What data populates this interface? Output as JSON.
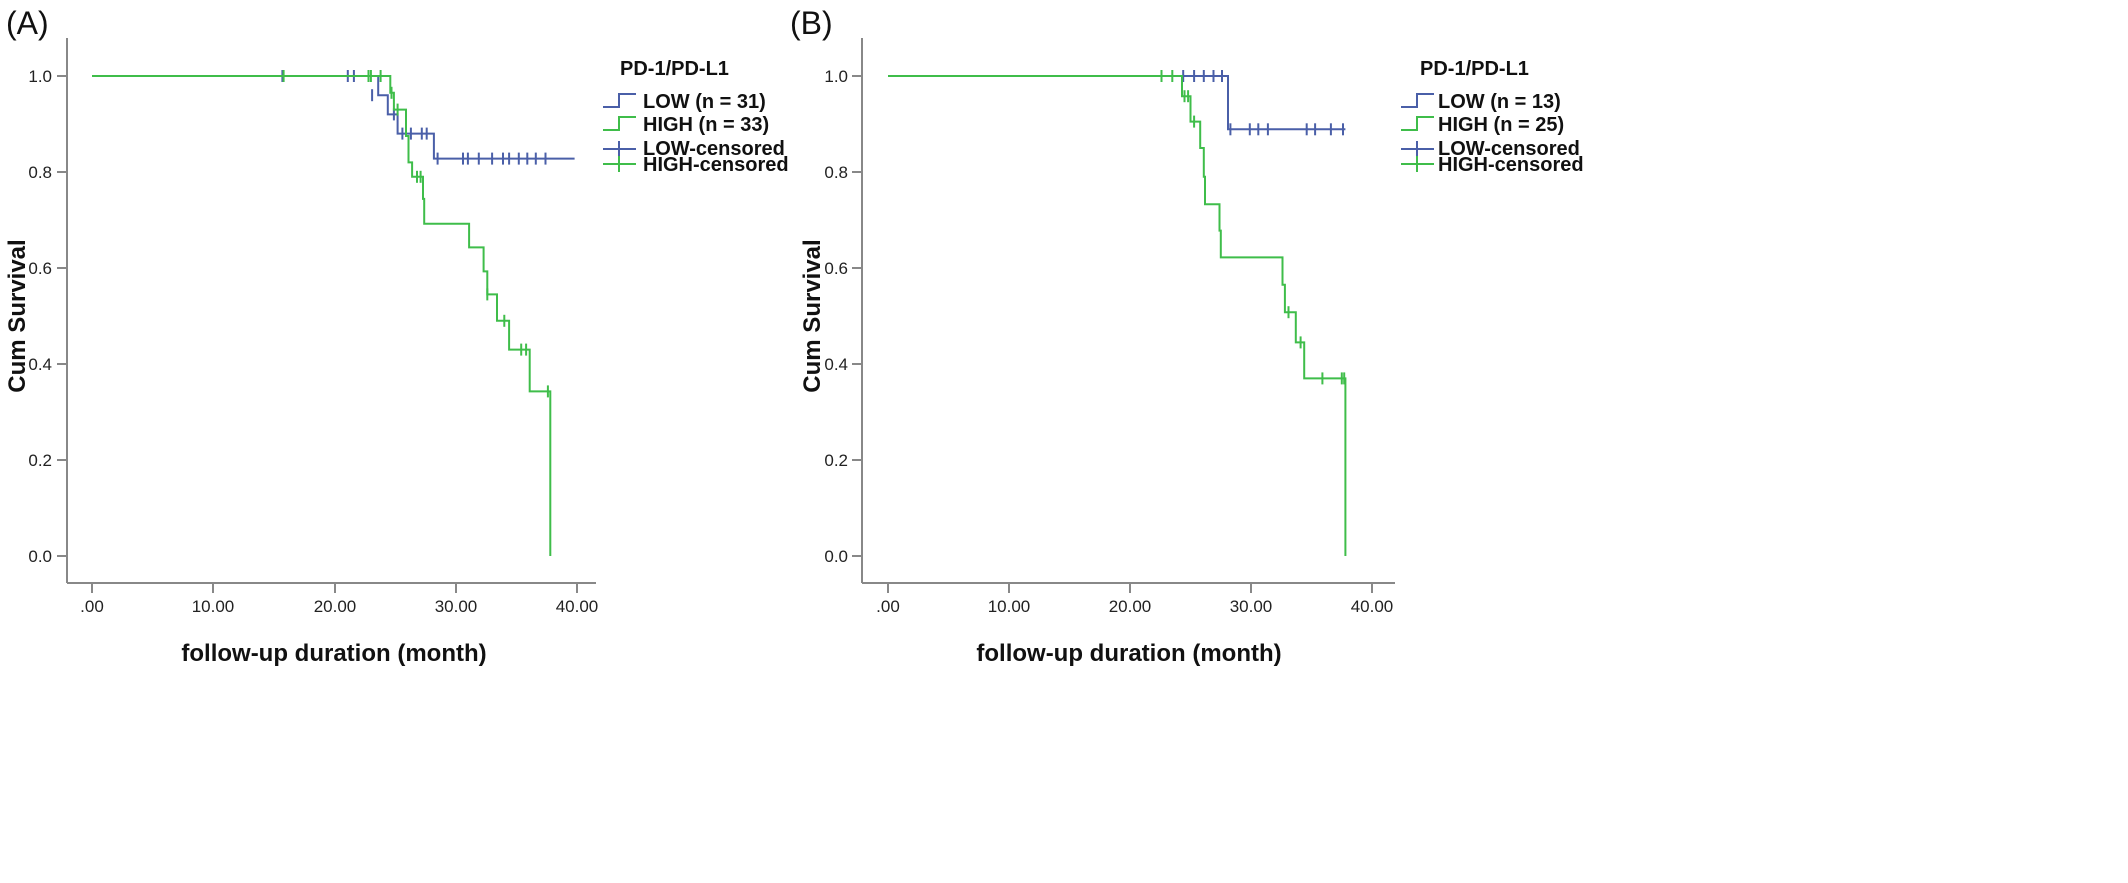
{
  "chart_data": [
    {
      "panel_label": "(A)",
      "type": "line",
      "subtype": "kaplan-meier",
      "xlabel": "follow-up duration (month)",
      "ylabel": "Cum Survival",
      "xlim": [
        -2,
        42
      ],
      "ylim": [
        -0.04,
        1.06
      ],
      "xticks": [
        0,
        10,
        20,
        30,
        40
      ],
      "xtick_labels": [
        ".00",
        "10.00",
        "20.00",
        "30.00",
        "40.00"
      ],
      "yticks": [
        0,
        0.2,
        0.4,
        0.6,
        0.8,
        1.0
      ],
      "ytick_labels": [
        "0.0",
        "0.2",
        "0.4",
        "0.6",
        "0.8",
        "1.0"
      ],
      "grid": false,
      "legend": {
        "title": "PD-1/PD-L1",
        "position": "top-right",
        "entries": [
          "LOW (n = 31)",
          "HIGH (n = 33)",
          "LOW-censored",
          "HIGH-censored"
        ]
      },
      "series": [
        {
          "name": "LOW (n = 31)",
          "color": "#4a5fa8",
          "steps": [
            [
              0,
              1.0
            ],
            [
              23.6,
              0.96
            ],
            [
              24.4,
              0.92
            ],
            [
              25.2,
              0.88
            ],
            [
              28.2,
              0.828
            ],
            [
              39.8,
              0.828
            ]
          ],
          "censored": [
            [
              15.7,
              1.0
            ],
            [
              21.1,
              1.0
            ],
            [
              21.6,
              1.0
            ],
            [
              23.1,
              0.96
            ],
            [
              24.9,
              0.92
            ],
            [
              25.6,
              0.88
            ],
            [
              26.3,
              0.88
            ],
            [
              27.2,
              0.88
            ],
            [
              27.6,
              0.88
            ],
            [
              28.5,
              0.828
            ],
            [
              30.6,
              0.828
            ],
            [
              31.0,
              0.828
            ],
            [
              31.9,
              0.828
            ],
            [
              33.0,
              0.828
            ],
            [
              33.9,
              0.828
            ],
            [
              34.4,
              0.828
            ],
            [
              35.2,
              0.828
            ],
            [
              35.9,
              0.828
            ],
            [
              36.6,
              0.828
            ],
            [
              37.4,
              0.828
            ]
          ]
        },
        {
          "name": "HIGH (n = 33)",
          "color": "#3fbd4a",
          "steps": [
            [
              0,
              1.0
            ],
            [
              24.6,
              0.965
            ],
            [
              24.9,
              0.93
            ],
            [
              25.9,
              0.875
            ],
            [
              26.1,
              0.82
            ],
            [
              26.4,
              0.79
            ],
            [
              27.3,
              0.744
            ],
            [
              27.4,
              0.692
            ],
            [
              31.1,
              0.643
            ],
            [
              32.3,
              0.593
            ],
            [
              32.6,
              0.545
            ],
            [
              33.4,
              0.49
            ],
            [
              34.4,
              0.43
            ],
            [
              36.1,
              0.343
            ],
            [
              37.8,
              0.0
            ]
          ],
          "censored": [
            [
              15.8,
              1.0
            ],
            [
              22.8,
              1.0
            ],
            [
              23.0,
              1.0
            ],
            [
              23.8,
              1.0
            ],
            [
              24.7,
              0.965
            ],
            [
              25.2,
              0.93
            ],
            [
              26.8,
              0.79
            ],
            [
              27.1,
              0.79
            ],
            [
              32.6,
              0.545
            ],
            [
              34.0,
              0.49
            ],
            [
              35.4,
              0.43
            ],
            [
              35.8,
              0.43
            ],
            [
              37.6,
              0.343
            ]
          ]
        }
      ]
    },
    {
      "panel_label": "(B)",
      "type": "line",
      "subtype": "kaplan-meier",
      "xlabel": "follow-up duration (month)",
      "ylabel": "Cum Survival",
      "xlim": [
        -2,
        42
      ],
      "ylim": [
        -0.04,
        1.06
      ],
      "xticks": [
        0,
        10,
        20,
        30,
        40
      ],
      "xtick_labels": [
        ".00",
        "10.00",
        "20.00",
        "30.00",
        "40.00"
      ],
      "yticks": [
        0,
        0.2,
        0.4,
        0.6,
        0.8,
        1.0
      ],
      "ytick_labels": [
        "0.0",
        "0.2",
        "0.4",
        "0.6",
        "0.8",
        "1.0"
      ],
      "grid": false,
      "legend": {
        "title": "PD-1/PD-L1",
        "position": "top-right",
        "entries": [
          "LOW (n = 13)",
          "HIGH (n = 25)",
          "LOW-censored",
          "HIGH-censored"
        ]
      },
      "series": [
        {
          "name": "LOW (n = 13)",
          "color": "#4a5fa8",
          "steps": [
            [
              0,
              1.0
            ],
            [
              28.1,
              0.889
            ],
            [
              37.8,
              0.889
            ]
          ],
          "censored": [
            [
              24.4,
              1.0
            ],
            [
              25.3,
              1.0
            ],
            [
              26.1,
              1.0
            ],
            [
              26.9,
              1.0
            ],
            [
              27.6,
              1.0
            ],
            [
              28.3,
              0.889
            ],
            [
              29.9,
              0.889
            ],
            [
              30.6,
              0.889
            ],
            [
              31.4,
              0.889
            ],
            [
              34.6,
              0.889
            ],
            [
              35.3,
              0.889
            ],
            [
              36.6,
              0.889
            ],
            [
              37.6,
              0.889
            ]
          ]
        },
        {
          "name": "HIGH (n = 25)",
          "color": "#3fbd4a",
          "steps": [
            [
              0,
              1.0
            ],
            [
              24.3,
              0.958
            ],
            [
              25.0,
              0.905
            ],
            [
              25.8,
              0.85
            ],
            [
              26.1,
              0.79
            ],
            [
              26.2,
              0.733
            ],
            [
              27.4,
              0.678
            ],
            [
              27.5,
              0.622
            ],
            [
              32.6,
              0.565
            ],
            [
              32.8,
              0.508
            ],
            [
              33.7,
              0.445
            ],
            [
              34.4,
              0.37
            ],
            [
              37.8,
              0.0
            ]
          ],
          "censored": [
            [
              22.6,
              1.0
            ],
            [
              23.5,
              1.0
            ],
            [
              24.5,
              0.958
            ],
            [
              24.8,
              0.958
            ],
            [
              25.3,
              0.905
            ],
            [
              33.1,
              0.508
            ],
            [
              34.1,
              0.445
            ],
            [
              35.9,
              0.37
            ],
            [
              37.5,
              0.37
            ],
            [
              37.7,
              0.37
            ]
          ]
        }
      ]
    }
  ]
}
